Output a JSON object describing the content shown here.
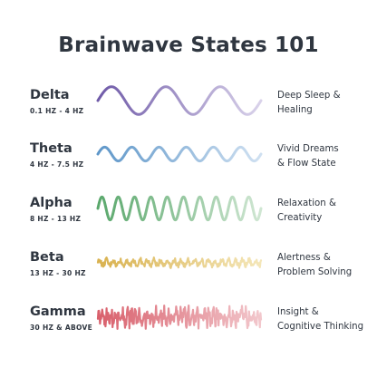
{
  "title": "Brainwave States 101",
  "states": [
    {
      "name": "Delta",
      "range": "0.1 HZ - 4 HZ",
      "description": [
        "Deep Sleep &",
        "Healing"
      ],
      "colors": [
        "#6f5aa8",
        "#d9d2ea"
      ],
      "wave": {
        "cycles": 3,
        "amplitude": 0.9,
        "noise": 0
      }
    },
    {
      "name": "Theta",
      "range": "4 HZ - 7.5 HZ",
      "description": [
        "Vivid Dreams",
        "& Flow State"
      ],
      "colors": [
        "#5f97c9",
        "#cfe0f1"
      ],
      "wave": {
        "cycles": 6,
        "amplitude": 0.45,
        "noise": 0
      }
    },
    {
      "name": "Alpha",
      "range": "8 HZ - 13 HZ",
      "description": [
        "Relaxation &",
        "Creativity"
      ],
      "colors": [
        "#5aa86c",
        "#cfe6d2"
      ],
      "wave": {
        "cycles": 10,
        "amplitude": 0.75,
        "noise": 0
      }
    },
    {
      "name": "Beta",
      "range": "13 HZ - 30 HZ",
      "description": [
        "Alertness &",
        "Problem Solving"
      ],
      "colors": [
        "#d9b250",
        "#f4e6b8"
      ],
      "wave": {
        "cycles": 24,
        "amplitude": 0.18,
        "noise": 0.15
      }
    },
    {
      "name": "Gamma",
      "range": "30 HZ & ABOVE",
      "description": [
        "Insight &",
        "Cognitive Thinking"
      ],
      "colors": [
        "#d9606c",
        "#f2c7cc"
      ],
      "wave": {
        "cycles": 40,
        "amplitude": 0.3,
        "noise": 0.45
      }
    }
  ]
}
